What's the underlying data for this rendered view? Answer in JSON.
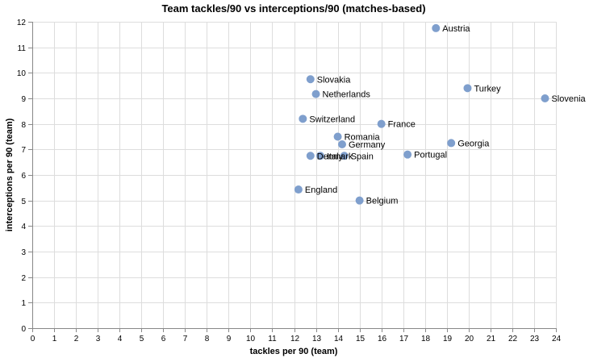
{
  "chart_data": {
    "type": "scatter",
    "title": "Team tackles/90 vs interceptions/90 (matches-based)",
    "xlabel": "tackles per 90 (team)",
    "ylabel": "interceptions per 90 (team)",
    "xlim": [
      0,
      24
    ],
    "ylim": [
      0,
      12
    ],
    "x_ticks": [
      "0",
      "1",
      "2",
      "3",
      "4",
      "5",
      "6",
      "7",
      "8",
      "9",
      "10",
      "11",
      "12",
      "13",
      "14",
      "15",
      "16",
      "17",
      "18",
      "19",
      "20",
      "21",
      "22",
      "23",
      "24"
    ],
    "y_ticks": [
      "0",
      "1",
      "2",
      "3",
      "4",
      "5",
      "6",
      "7",
      "8",
      "9",
      "10",
      "11",
      "12"
    ],
    "grid": true,
    "point_color": "#7f9fcd",
    "points": [
      {
        "label": "Austria",
        "x": 18.5,
        "y": 11.75
      },
      {
        "label": "Slovakia",
        "x": 12.75,
        "y": 9.75
      },
      {
        "label": "Netherlands",
        "x": 13.0,
        "y": 9.17
      },
      {
        "label": "Turkey",
        "x": 19.95,
        "y": 9.4
      },
      {
        "label": "Slovenia",
        "x": 23.5,
        "y": 9.0
      },
      {
        "label": "Switzerland",
        "x": 12.4,
        "y": 8.2
      },
      {
        "label": "France",
        "x": 16.0,
        "y": 8.0
      },
      {
        "label": "Romania",
        "x": 14.0,
        "y": 7.5
      },
      {
        "label": "Germany",
        "x": 14.2,
        "y": 7.2
      },
      {
        "label": "Georgia",
        "x": 19.2,
        "y": 7.25
      },
      {
        "label": "Portugal",
        "x": 17.2,
        "y": 6.8
      },
      {
        "label": "Denmark",
        "x": 12.75,
        "y": 6.75
      },
      {
        "label": "Italy",
        "x": 13.2,
        "y": 6.75
      },
      {
        "label": "Spain",
        "x": 14.3,
        "y": 6.75
      },
      {
        "label": "England",
        "x": 12.2,
        "y": 5.43
      },
      {
        "label": "Belgium",
        "x": 15.0,
        "y": 5.0
      }
    ]
  }
}
